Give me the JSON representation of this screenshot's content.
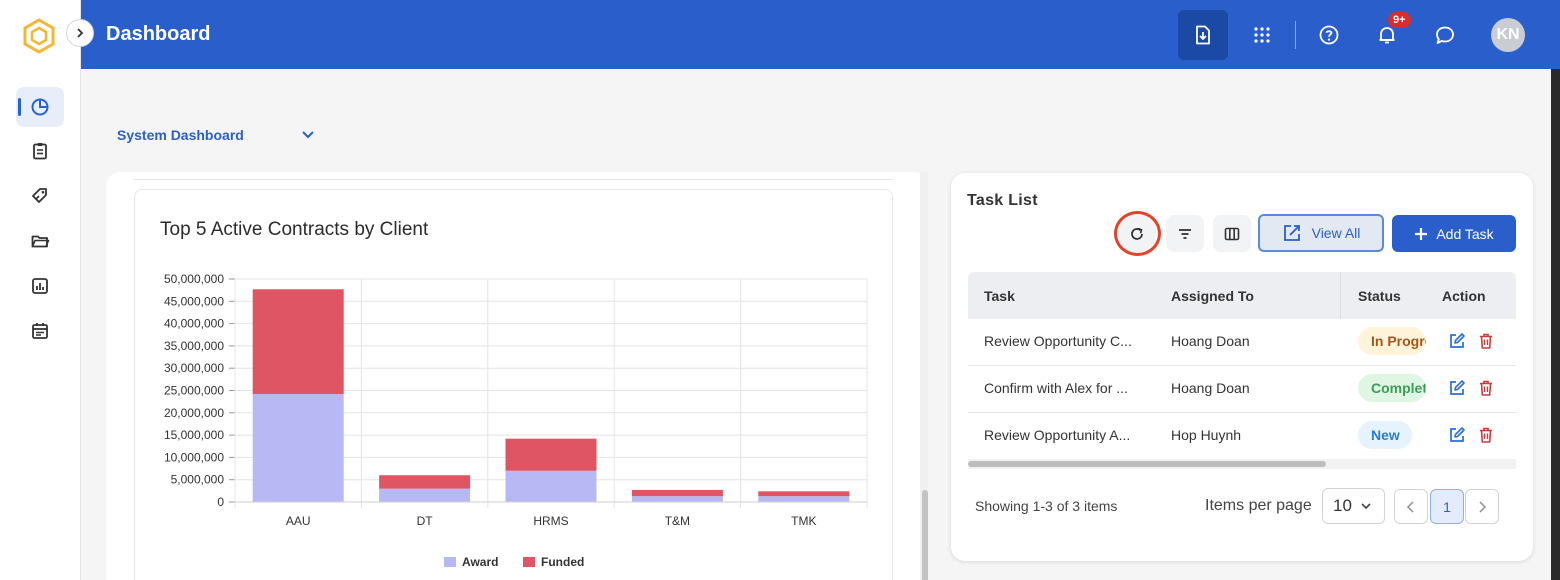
{
  "header": {
    "title": "Dashboard",
    "notification_count": "9+",
    "avatar_initials": "KN"
  },
  "sidebar": {
    "items": [
      {
        "icon": "dashboard-icon",
        "active": true
      },
      {
        "icon": "clipboard-icon",
        "active": false
      },
      {
        "icon": "tag-icon",
        "active": false
      },
      {
        "icon": "folder-icon",
        "active": false
      },
      {
        "icon": "report-icon",
        "active": false
      },
      {
        "icon": "calendar-icon",
        "active": false
      }
    ]
  },
  "dashboard_selector": {
    "value": "System Dashboard"
  },
  "chart": {
    "title": "Top 5 Active Contracts by Client"
  },
  "chart_data": {
    "type": "bar",
    "stacked": true,
    "title": "Top 5 Active Contracts by Client",
    "categories": [
      "AAU",
      "DT",
      "HRMS",
      "T&M",
      "TMK"
    ],
    "series": [
      {
        "name": "Award",
        "color": "#b8b8f5",
        "values": [
          24200000,
          3000000,
          7000000,
          1300000,
          1300000
        ]
      },
      {
        "name": "Funded",
        "color": "#df5563",
        "values": [
          23500000,
          3000000,
          7200000,
          1400000,
          1100000
        ]
      }
    ],
    "ylim": [
      0,
      50000000
    ],
    "yticks": [
      0,
      5000000,
      10000000,
      15000000,
      20000000,
      25000000,
      30000000,
      35000000,
      40000000,
      45000000,
      50000000
    ],
    "ytick_labels": [
      "0",
      "5,000,000",
      "10,000,000",
      "15,000,000",
      "20,000,000",
      "25,000,000",
      "30,000,000",
      "35,000,000",
      "40,000,000",
      "45,000,000",
      "50,000,000"
    ],
    "grid": true,
    "legend": "bottom-center"
  },
  "task_list": {
    "title": "Task List",
    "view_all_label": "View All",
    "add_task_label": "Add Task",
    "columns": [
      "Task",
      "Assigned To",
      "Status",
      "Action"
    ],
    "rows": [
      {
        "task": "Review Opportunity C...",
        "assigned_to": "Hoang Doan",
        "status": "In Progress",
        "status_kind": "prog"
      },
      {
        "task": "Confirm with Alex for ...",
        "assigned_to": "Hoang Doan",
        "status": "Completed",
        "status_kind": "done"
      },
      {
        "task": "Review Opportunity A...",
        "assigned_to": "Hop Huynh",
        "status": "New",
        "status_kind": "new"
      }
    ],
    "showing": "Showing 1-3 of 3 items",
    "items_per_page_label": "Items per page",
    "items_per_page": "10",
    "current_page": "1"
  },
  "colors": {
    "header_bg": "#2a5fcb",
    "accent": "#2a5fcb",
    "highlight_ring": "#e0452b"
  }
}
